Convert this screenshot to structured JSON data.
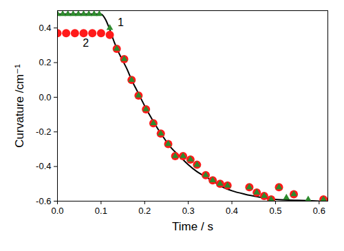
{
  "chart_data": {
    "type": "scatter",
    "x_label": "Time / s",
    "y_label": "Curvature /cm⁻¹",
    "xlim": [
      0,
      0.62
    ],
    "ylim": [
      -0.6,
      0.5
    ],
    "xticks": [
      {
        "value": 0,
        "label": "0.0"
      },
      0.1,
      0.2,
      0.3,
      0.4,
      0.5,
      0.6
    ],
    "yticks": [
      -0.6,
      -0.4,
      -0.2,
      {
        "value": 0,
        "label": "0.0"
      },
      0.2,
      0.4
    ],
    "grid": false,
    "series": [
      {
        "type": "line",
        "color": "#000000",
        "line_style": "solid",
        "x": [
          0,
          0.1,
          0.11,
          0.12,
          0.13,
          0.14,
          0.15,
          0.16,
          0.17,
          0.18,
          0.19,
          0.2,
          0.22,
          0.24,
          0.26,
          0.28,
          0.3,
          0.32,
          0.34,
          0.36,
          0.38,
          0.4,
          0.43,
          0.46,
          0.5,
          0.55,
          0.6
        ],
        "values": [
          0.48,
          0.48,
          0.45,
          0.39,
          0.32,
          0.26,
          0.21,
          0.16,
          0.1,
          0.05,
          0.0,
          -0.05,
          -0.14,
          -0.22,
          -0.29,
          -0.34,
          -0.39,
          -0.43,
          -0.46,
          -0.49,
          -0.52,
          -0.54,
          -0.56,
          -0.575,
          -0.59,
          -0.595,
          -0.6
        ]
      },
      {
        "type": "scatter",
        "color": "#ff1a1a",
        "marker": "circle",
        "x": [
          0,
          0.02,
          0.04,
          0.06,
          0.08,
          0.1,
          0.12,
          0.136,
          0.153,
          0.17,
          0.186,
          0.203,
          0.22,
          0.237,
          0.254,
          0.27,
          0.288,
          0.305,
          0.32,
          0.34,
          0.356,
          0.373,
          0.39,
          0.44,
          0.457,
          0.474,
          0.49,
          0.508,
          0.542,
          0.61
        ],
        "values": [
          0.37,
          0.37,
          0.37,
          0.37,
          0.37,
          0.37,
          0.36,
          0.28,
          0.22,
          0.1,
          0.01,
          -0.07,
          -0.15,
          -0.21,
          -0.27,
          -0.34,
          -0.34,
          -0.36,
          -0.39,
          -0.45,
          -0.48,
          -0.5,
          -0.51,
          -0.52,
          -0.55,
          -0.57,
          -0.59,
          -0.52,
          -0.56,
          -0.59
        ]
      },
      {
        "type": "scatter",
        "color": "#2e8b2e",
        "marker": "triangle",
        "x": [
          0,
          0.012,
          0.024,
          0.036,
          0.048,
          0.06,
          0.072,
          0.084,
          0.096,
          0.12,
          0.136,
          0.153,
          0.17,
          0.186,
          0.203,
          0.22,
          0.237,
          0.254,
          0.27,
          0.288,
          0.305,
          0.32,
          0.34,
          0.356,
          0.373,
          0.39,
          0.44,
          0.457,
          0.474,
          0.49,
          0.508,
          0.525,
          0.542,
          0.575,
          0.61
        ],
        "values": [
          0.48,
          0.48,
          0.48,
          0.48,
          0.48,
          0.48,
          0.48,
          0.48,
          0.48,
          0.4,
          0.28,
          0.22,
          0.1,
          0.01,
          -0.07,
          -0.15,
          -0.21,
          -0.27,
          -0.34,
          -0.34,
          -0.36,
          -0.39,
          -0.45,
          -0.48,
          -0.5,
          -0.51,
          -0.52,
          -0.55,
          -0.57,
          -0.59,
          -0.52,
          -0.58,
          -0.56,
          -0.59,
          -0.59
        ]
      }
    ],
    "annotations": [
      {
        "text": "1",
        "x": 0.145,
        "y": 0.43
      },
      {
        "text": "2",
        "x": 0.065,
        "y": 0.31
      }
    ]
  }
}
